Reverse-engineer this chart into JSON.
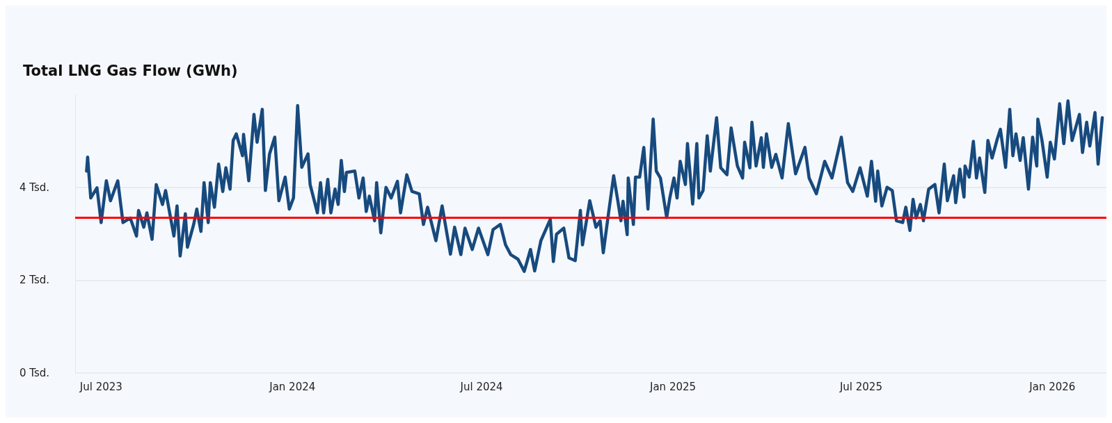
{
  "chart_data": {
    "type": "line",
    "title": "Total LNG Gas Flow (GWh)",
    "color": "#174a7e",
    "marker": "none",
    "line_style": "solid",
    "grid": "y",
    "xlim": [
      "2023-06-06",
      "2026-02-22"
    ],
    "xticks": [
      {
        "value": "2023-07",
        "label": "Jul 2023"
      },
      {
        "value": "2024-01",
        "label": "Jan 2024"
      },
      {
        "value": "2024-07",
        "label": "Jul 2024"
      },
      {
        "value": "2025-01",
        "label": "Jan 2025"
      },
      {
        "value": "2025-07",
        "label": "Jul 2025"
      },
      {
        "value": "2026-01",
        "label": "Jan 2026"
      }
    ],
    "ylim": [
      0,
      6
    ],
    "yticks": [
      {
        "value": 0,
        "label": "0 Tsd."
      },
      {
        "value": 2,
        "label": "2 Tsd."
      },
      {
        "value": 4,
        "label": "4 Tsd."
      }
    ],
    "ref_lines": [
      {
        "axis": "y",
        "value": 3.35,
        "color": "#ff0000"
      }
    ],
    "x": [
      "2023-06-17",
      "2023-06-18",
      "2023-06-21",
      "2023-06-27",
      "2023-07-01",
      "2023-07-06",
      "2023-07-10",
      "2023-07-17",
      "2023-07-22",
      "2023-07-29",
      "2023-08-04",
      "2023-08-06",
      "2023-08-11",
      "2023-08-14",
      "2023-08-19",
      "2023-08-23",
      "2023-08-29",
      "2023-09-01",
      "2023-09-09",
      "2023-09-12",
      "2023-09-15",
      "2023-09-20",
      "2023-09-22",
      "2023-09-28",
      "2023-10-01",
      "2023-10-05",
      "2023-10-08",
      "2023-10-12",
      "2023-10-14",
      "2023-10-18",
      "2023-10-22",
      "2023-10-26",
      "2023-10-29",
      "2023-11-02",
      "2023-11-05",
      "2023-11-08",
      "2023-11-14",
      "2023-11-15",
      "2023-11-20",
      "2023-11-25",
      "2023-11-28",
      "2023-12-03",
      "2023-12-06",
      "2023-12-10",
      "2023-12-15",
      "2023-12-19",
      "2023-12-25",
      "2023-12-29",
      "2024-01-02",
      "2024-01-06",
      "2024-01-10",
      "2024-01-16",
      "2024-01-18",
      "2024-01-25",
      "2024-01-28",
      "2024-01-31",
      "2024-02-04",
      "2024-02-07",
      "2024-02-11",
      "2024-02-14",
      "2024-02-17",
      "2024-02-20",
      "2024-02-22",
      "2024-03-01",
      "2024-03-05",
      "2024-03-09",
      "2024-03-12",
      "2024-03-15",
      "2024-03-20",
      "2024-03-22",
      "2024-03-26",
      "2024-03-31",
      "2024-04-05",
      "2024-04-11",
      "2024-04-14",
      "2024-04-20",
      "2024-04-25",
      "2024-05-02",
      "2024-05-06",
      "2024-05-10",
      "2024-05-18",
      "2024-05-24",
      "2024-06-01",
      "2024-06-05",
      "2024-06-11",
      "2024-06-15",
      "2024-06-22",
      "2024-06-28",
      "2024-07-07",
      "2024-07-12",
      "2024-07-19",
      "2024-07-24",
      "2024-07-29",
      "2024-08-05",
      "2024-08-11",
      "2024-08-17",
      "2024-08-21",
      "2024-08-27",
      "2024-09-05",
      "2024-09-08",
      "2024-09-11",
      "2024-09-18",
      "2024-09-23",
      "2024-09-29",
      "2024-10-04",
      "2024-10-06",
      "2024-10-13",
      "2024-10-19",
      "2024-10-23",
      "2024-10-26",
      "2024-10-31",
      "2024-11-05",
      "2024-11-09",
      "2024-11-12",
      "2024-11-14",
      "2024-11-18",
      "2024-11-19",
      "2024-11-24",
      "2024-11-26",
      "2024-11-30",
      "2024-12-04",
      "2024-12-08",
      "2024-12-13",
      "2024-12-16",
      "2024-12-20",
      "2024-12-26",
      "2024-12-29",
      "2025-01-02",
      "2025-01-05",
      "2025-01-08",
      "2025-01-13",
      "2025-01-15",
      "2025-01-20",
      "2025-01-24",
      "2025-01-26",
      "2025-01-30",
      "2025-02-03",
      "2025-02-06",
      "2025-02-12",
      "2025-02-16",
      "2025-02-22",
      "2025-02-26",
      "2025-03-04",
      "2025-03-09",
      "2025-03-11",
      "2025-03-16",
      "2025-03-18",
      "2025-03-22",
      "2025-03-27",
      "2025-03-29",
      "2025-04-01",
      "2025-04-06",
      "2025-04-10",
      "2025-04-16",
      "2025-04-22",
      "2025-04-29",
      "2025-05-08",
      "2025-05-12",
      "2025-05-19",
      "2025-05-27",
      "2025-06-03",
      "2025-06-12",
      "2025-06-18",
      "2025-06-23",
      "2025-06-30",
      "2025-07-07",
      "2025-07-11",
      "2025-07-15",
      "2025-07-17",
      "2025-07-21",
      "2025-07-26",
      "2025-07-31",
      "2025-08-04",
      "2025-08-10",
      "2025-08-13",
      "2025-08-17",
      "2025-08-20",
      "2025-08-23",
      "2025-08-27",
      "2025-08-30",
      "2025-09-04",
      "2025-09-10",
      "2025-09-14",
      "2025-09-19",
      "2025-09-22",
      "2025-09-28",
      "2025-09-30",
      "2025-10-04",
      "2025-10-08",
      "2025-10-09",
      "2025-10-13",
      "2025-10-17",
      "2025-10-20",
      "2025-10-23",
      "2025-10-28",
      "2025-10-31",
      "2025-11-04",
      "2025-11-09",
      "2025-11-12",
      "2025-11-17",
      "2025-11-21",
      "2025-11-24",
      "2025-11-27",
      "2025-12-01",
      "2025-12-04",
      "2025-12-09",
      "2025-12-13",
      "2025-12-17",
      "2025-12-18",
      "2025-12-22",
      "2025-12-27",
      "2025-12-30",
      "2026-01-03",
      "2026-01-08",
      "2026-01-12",
      "2026-01-16",
      "2026-01-20",
      "2026-01-27",
      "2026-01-30",
      "2026-02-03",
      "2026-02-06",
      "2026-02-11",
      "2026-02-14",
      "2026-02-18"
    ],
    "values": [
      4.35,
      4.65,
      3.77,
      3.99,
      3.24,
      4.14,
      3.71,
      4.14,
      3.24,
      3.34,
      2.95,
      3.5,
      3.14,
      3.45,
      2.88,
      4.06,
      3.63,
      3.93,
      2.95,
      3.6,
      2.52,
      3.43,
      2.71,
      3.2,
      3.53,
      3.05,
      4.1,
      3.24,
      4.1,
      3.57,
      4.5,
      3.91,
      4.42,
      3.96,
      5.01,
      5.15,
      4.68,
      5.14,
      4.14,
      5.57,
      4.97,
      5.68,
      3.93,
      4.72,
      5.08,
      3.71,
      4.22,
      3.53,
      3.77,
      5.76,
      4.43,
      4.72,
      4.06,
      3.45,
      4.1,
      3.45,
      4.17,
      3.45,
      3.96,
      3.63,
      4.58,
      3.91,
      4.32,
      4.35,
      3.77,
      4.2,
      3.48,
      3.81,
      3.28,
      4.1,
      3.02,
      4,
      3.77,
      4.13,
      3.45,
      4.27,
      3.91,
      3.86,
      3.2,
      3.57,
      2.85,
      3.6,
      2.56,
      3.14,
      2.55,
      3.12,
      2.66,
      3.12,
      2.55,
      3.09,
      3.2,
      2.76,
      2.55,
      2.45,
      2.19,
      2.66,
      2.2,
      2.85,
      3.31,
      2.4,
      2.99,
      3.12,
      2.48,
      2.42,
      3.5,
      2.76,
      3.71,
      3.14,
      3.28,
      2.59,
      3.43,
      4.25,
      3.71,
      3.28,
      3.7,
      2.98,
      4.2,
      3.2,
      4.22,
      4.22,
      4.86,
      3.53,
      5.47,
      4.35,
      4.2,
      3.35,
      3.77,
      4.2,
      3.77,
      4.56,
      4.06,
      4.94,
      3.64,
      4.94,
      3.77,
      3.93,
      5.11,
      4.35,
      5.5,
      4.42,
      4.27,
      5.28,
      4.46,
      4.2,
      4.97,
      4.42,
      5.4,
      4.46,
      5.07,
      4.43,
      5.15,
      4.43,
      4.71,
      4.2,
      5.37,
      4.29,
      4.86,
      4.2,
      3.86,
      4.56,
      4.2,
      5.08,
      4.1,
      3.91,
      4.42,
      3.81,
      4.56,
      3.7,
      4.35,
      3.6,
      4,
      3.93,
      3.28,
      3.24,
      3.57,
      3.07,
      3.74,
      3.34,
      3.63,
      3.28,
      3.96,
      4.06,
      3.45,
      4.5,
      3.71,
      4.25,
      3.67,
      4.39,
      3.79,
      4.46,
      4.22,
      4.99,
      4.2,
      4.63,
      3.89,
      5.01,
      4.63,
      5.04,
      5.25,
      4.43,
      5.68,
      4.68,
      5.15,
      4.58,
      5.07,
      3.96,
      5.08,
      4.46,
      5.47,
      5.01,
      4.22,
      4.97,
      4.61,
      5.8,
      4.94,
      5.86,
      5.01,
      5.57,
      4.75,
      5.4,
      4.89,
      5.61,
      4.5,
      5.5
    ]
  }
}
